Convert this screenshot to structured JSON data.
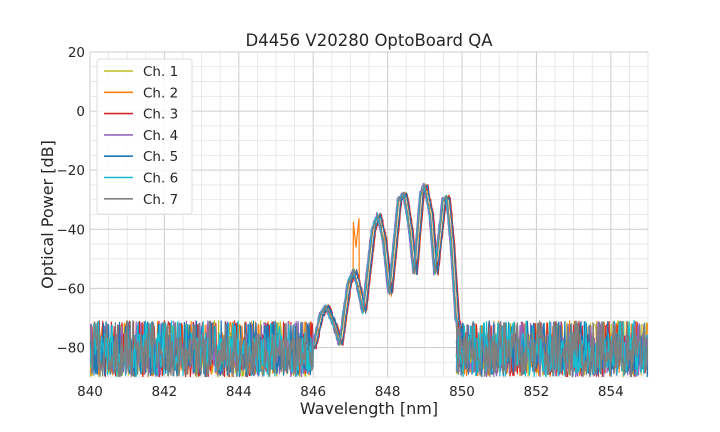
{
  "chart_data": {
    "type": "line",
    "title": "D4456 V20280 OptoBoard QA",
    "xlabel": "Wavelength [nm]",
    "ylabel": "Optical Power [dB]",
    "xlim": [
      840,
      855
    ],
    "ylim": [
      -90,
      20
    ],
    "x_ticks": [
      840,
      842,
      844,
      846,
      848,
      850,
      852,
      854
    ],
    "y_ticks": [
      20,
      0,
      -20,
      -40,
      -60,
      -80
    ],
    "x_tick_labels": [
      "840",
      "842",
      "844",
      "846",
      "848",
      "850",
      "852",
      "854"
    ],
    "y_tick_labels": [
      "20",
      "0",
      "−20",
      "−40",
      "−60",
      "−80"
    ],
    "grid": true,
    "legend_position": "upper-left",
    "noise_floor": {
      "low": -90,
      "high": -73
    },
    "peak_envelope": [
      {
        "x": 846.0,
        "y": -80
      },
      {
        "x": 846.2,
        "y": -69
      },
      {
        "x": 846.35,
        "y": -66
      },
      {
        "x": 846.55,
        "y": -72
      },
      {
        "x": 846.72,
        "y": -79
      },
      {
        "x": 846.95,
        "y": -58
      },
      {
        "x": 847.1,
        "y": -54
      },
      {
        "x": 847.25,
        "y": -62
      },
      {
        "x": 847.35,
        "y": -68
      },
      {
        "x": 847.6,
        "y": -40
      },
      {
        "x": 847.75,
        "y": -35
      },
      {
        "x": 847.9,
        "y": -44
      },
      {
        "x": 848.05,
        "y": -62
      },
      {
        "x": 848.3,
        "y": -30
      },
      {
        "x": 848.45,
        "y": -28
      },
      {
        "x": 848.6,
        "y": -40
      },
      {
        "x": 848.72,
        "y": -55
      },
      {
        "x": 848.9,
        "y": -28
      },
      {
        "x": 849.0,
        "y": -25
      },
      {
        "x": 849.15,
        "y": -35
      },
      {
        "x": 849.28,
        "y": -55
      },
      {
        "x": 849.5,
        "y": -30
      },
      {
        "x": 849.6,
        "y": -29
      },
      {
        "x": 849.72,
        "y": -45
      },
      {
        "x": 849.85,
        "y": -70
      },
      {
        "x": 850.0,
        "y": -80
      }
    ],
    "series": [
      {
        "name": "Ch. 1",
        "color": "#bcbd22",
        "offset": 0.0,
        "spike": 0
      },
      {
        "name": "Ch. 2",
        "color": "#ff7f0e",
        "offset": 0.05,
        "spike": 3
      },
      {
        "name": "Ch. 3",
        "color": "#d62728",
        "offset": 0.08,
        "spike": 0
      },
      {
        "name": "Ch. 4",
        "color": "#9467bd",
        "offset": -0.04,
        "spike": 0
      },
      {
        "name": "Ch. 5",
        "color": "#1f77b4",
        "offset": 0.06,
        "spike": 0
      },
      {
        "name": "Ch. 6",
        "color": "#17becf",
        "offset": -0.02,
        "spike": 1
      },
      {
        "name": "Ch. 7",
        "color": "#7f7f7f",
        "offset": 0.0,
        "spike": 0
      }
    ]
  }
}
